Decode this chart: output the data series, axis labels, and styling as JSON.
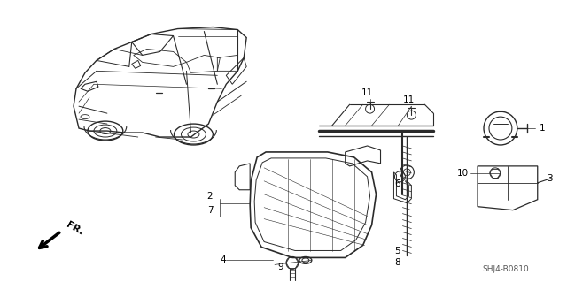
{
  "bg_color": "#ffffff",
  "line_color": "#2a2a2a",
  "text_color": "#000000",
  "fig_width": 6.4,
  "fig_height": 3.19,
  "dpi": 100,
  "diagram_code": "SHJ4-B0810",
  "fr_label": "FR."
}
